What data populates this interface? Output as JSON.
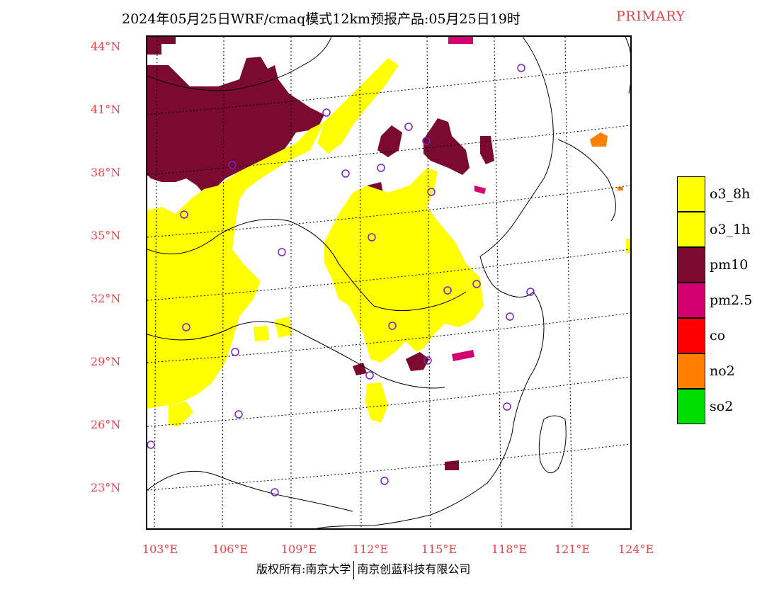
{
  "title": {
    "main": "2024年05月25日WRF/cmaq模式12km预报产品:05月25日19时",
    "tag": "PRIMARY"
  },
  "latitude_labels": [
    "44°N",
    "41°N",
    "38°N",
    "35°N",
    "32°N",
    "29°N",
    "26°N",
    "23°N"
  ],
  "longitude_labels": [
    "103°E",
    "106°E",
    "109°E",
    "112°E",
    "115°E",
    "118°E",
    "121°E",
    "124°E"
  ],
  "legend": [
    {
      "label": "o3_8h",
      "color": "#ffff00"
    },
    {
      "label": "o3_1h",
      "color": "#ffff00"
    },
    {
      "label": "pm10",
      "color": "#7a0a30"
    },
    {
      "label": "pm2.5",
      "color": "#d4006f"
    },
    {
      "label": "co",
      "color": "#ff0000"
    },
    {
      "label": "no2",
      "color": "#ff8000"
    },
    {
      "label": "so2",
      "color": "#00dd00"
    }
  ],
  "colors": {
    "o3": "#ffff00",
    "pm10": "#7a0a30",
    "pm25": "#d4006f",
    "no2": "#ff8000",
    "station_marker": "#7b22c7",
    "label_red": "#e8424a"
  },
  "footer": {
    "left": "版权所有:南京大学",
    "right": "南京创蓝科技有限公司"
  }
}
